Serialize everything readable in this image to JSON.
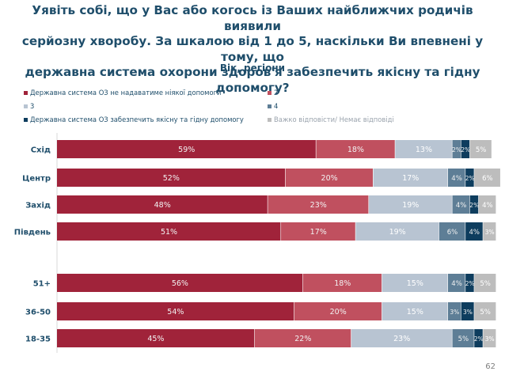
{
  "page": {
    "title_line1": "Уявіть собі, що у Вас або когось із Ваших найближчих родичів виявили",
    "title_line2": "серйозну хворобу. За шкалою від 1 до 5, наскільки Ви впевнені у тому, що",
    "title_line3": "державна система охорони здоров'я забезпечить якісну та гідну допомогу?",
    "subtitle": "Вік, регіони",
    "page_number": "62"
  },
  "legend": [
    {
      "label": "Державна система ОЗ не надаватиме ніякої допомоги",
      "color": "#a0233a"
    },
    {
      "label": "2",
      "color": "#c0505f"
    },
    {
      "label": "3",
      "color": "#b8c4d2"
    },
    {
      "label": "4",
      "color": "#5e7e96"
    },
    {
      "label": "Державна система ОЗ забезпечить якісну та гідну допомогу",
      "color": "#0e3d5e"
    },
    {
      "label": "Важко відповісти/ Немає відповіді",
      "color": "#bdbdbd"
    }
  ],
  "chart_data": {
    "type": "bar",
    "orientation": "horizontal",
    "stacked": true,
    "unit": "%",
    "categories": [
      "Схід",
      "Центр",
      "Захід",
      "Південь",
      "51+",
      "36-50",
      "18-35"
    ],
    "series": [
      {
        "name": "Державна система ОЗ не надаватиме ніякої допомоги",
        "values": [
          59,
          52,
          48,
          51,
          56,
          54,
          45
        ]
      },
      {
        "name": "2",
        "values": [
          18,
          20,
          23,
          17,
          18,
          20,
          22
        ]
      },
      {
        "name": "3",
        "values": [
          13,
          17,
          19,
          19,
          15,
          15,
          23
        ]
      },
      {
        "name": "4",
        "values": [
          2,
          4,
          4,
          6,
          4,
          3,
          5
        ]
      },
      {
        "name": "Державна система ОЗ забезпечить якісну та гідну допомогу",
        "values": [
          2,
          2,
          2,
          4,
          2,
          3,
          2
        ]
      },
      {
        "name": "Важко відповісти/ Немає відповіді",
        "values": [
          5,
          6,
          4,
          3,
          5,
          5,
          3
        ]
      }
    ],
    "xlim": [
      0,
      100
    ],
    "grid": false,
    "legend_position": "top"
  }
}
